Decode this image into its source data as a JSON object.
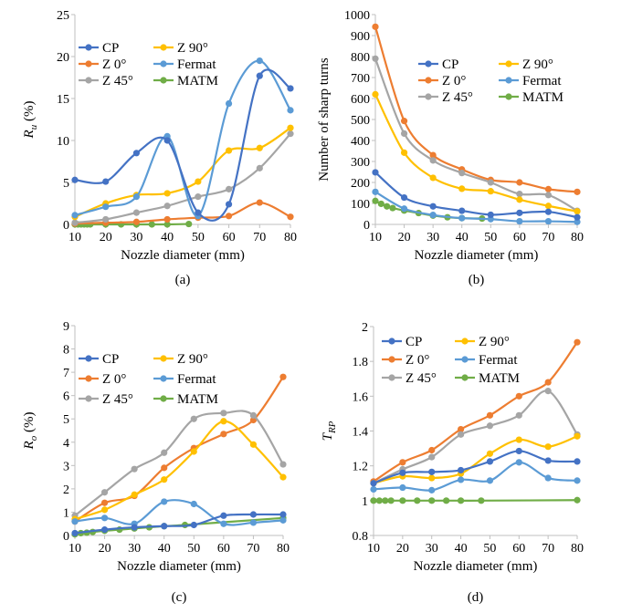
{
  "colors": {
    "CP": "#4472C4",
    "Z 0°": "#ED7D31",
    "Z 45°": "#A5A5A5",
    "Z 90°": "#FFC000",
    "Fermat": "#5B9BD5",
    "MATM": "#70AD47",
    "axis": "#bfbfbf"
  },
  "chart_data": [
    {
      "type": "line",
      "panel_label": "(a)",
      "xlabel": "Nozzle diameter (mm)",
      "ylabel_main": "R",
      "ylabel_sub": "u",
      "ylabel_tail": " (%)",
      "xlim": [
        10,
        80
      ],
      "ylim": [
        0,
        25
      ],
      "x_ticks": [
        "10",
        "20",
        "30",
        "40",
        "50",
        "60",
        "70",
        "80"
      ],
      "y_ticks": [
        "0",
        "5",
        "10",
        "15",
        "20",
        "25"
      ],
      "legend": [
        "CP",
        "Z 90°",
        "Z 0°",
        "Fermat",
        "Z 45°",
        "MATM"
      ],
      "series": [
        {
          "name": "CP",
          "x": [
            10,
            20,
            30,
            40,
            50,
            60,
            70,
            80
          ],
          "values": [
            5.3,
            5.1,
            8.5,
            10.0,
            1.4,
            2.4,
            17.7,
            16.2
          ]
        },
        {
          "name": "Z 90°",
          "x": [
            10,
            20,
            30,
            40,
            50,
            60,
            70,
            80
          ],
          "values": [
            0.9,
            2.5,
            3.5,
            3.7,
            5.1,
            8.8,
            9.1,
            11.5
          ]
        },
        {
          "name": "Z 0°",
          "x": [
            10,
            20,
            30,
            40,
            50,
            60,
            70,
            80
          ],
          "values": [
            0.1,
            0.2,
            0.3,
            0.6,
            0.8,
            1.0,
            2.6,
            0.9
          ]
        },
        {
          "name": "Fermat",
          "x": [
            10,
            20,
            30,
            40,
            50,
            60,
            70,
            80
          ],
          "values": [
            1.1,
            2.1,
            3.3,
            10.5,
            1.0,
            14.4,
            19.5,
            13.6
          ]
        },
        {
          "name": "Z 45°",
          "x": [
            10,
            20,
            30,
            40,
            50,
            60,
            70,
            80
          ],
          "values": [
            0.2,
            0.6,
            1.4,
            2.2,
            3.3,
            4.2,
            6.7,
            10.8
          ]
        },
        {
          "name": "MATM",
          "x": [
            10,
            11,
            12,
            13,
            14,
            15,
            20,
            25,
            30,
            35,
            40,
            47
          ],
          "values": [
            0.0,
            0.0,
            0.0,
            0.0,
            0.0,
            0.0,
            0.0,
            0.0,
            0.0,
            0.0,
            0.0,
            0.05
          ]
        }
      ]
    },
    {
      "type": "line",
      "panel_label": "(b)",
      "xlabel": "Nozzle diameter (mm)",
      "ylabel": "Number of sharp turns",
      "xlim": [
        10,
        80
      ],
      "ylim": [
        0,
        1000
      ],
      "x_ticks": [
        "10",
        "20",
        "30",
        "40",
        "50",
        "60",
        "70",
        "80"
      ],
      "y_ticks": [
        "0",
        "100",
        "200",
        "300",
        "400",
        "500",
        "600",
        "700",
        "800",
        "900",
        "1000"
      ],
      "legend": [
        "CP",
        "Z 90°",
        "Z 0°",
        "Fermat",
        "Z 45°",
        "MATM"
      ],
      "series": [
        {
          "name": "CP",
          "x": [
            10,
            20,
            30,
            40,
            50,
            60,
            70,
            80
          ],
          "values": [
            248,
            128,
            86,
            65,
            46,
            55,
            60,
            34
          ]
        },
        {
          "name": "Z 90°",
          "x": [
            10,
            20,
            30,
            40,
            50,
            60,
            70,
            80
          ],
          "values": [
            620,
            342,
            222,
            170,
            158,
            118,
            88,
            62
          ]
        },
        {
          "name": "Z 0°",
          "x": [
            10,
            20,
            30,
            40,
            50,
            60,
            70,
            80
          ],
          "values": [
            942,
            493,
            330,
            262,
            212,
            200,
            168,
            155
          ]
        },
        {
          "name": "Fermat",
          "x": [
            10,
            20,
            30,
            40,
            50,
            60,
            70,
            80
          ],
          "values": [
            155,
            75,
            45,
            30,
            25,
            15,
            15,
            12
          ]
        },
        {
          "name": "Z 45°",
          "x": [
            10,
            20,
            30,
            40,
            50,
            60,
            70,
            80
          ],
          "values": [
            790,
            433,
            305,
            245,
            200,
            145,
            140,
            65
          ]
        },
        {
          "name": "MATM",
          "x": [
            10,
            12,
            14,
            16,
            20,
            25,
            30,
            35,
            40,
            47
          ],
          "values": [
            112,
            98,
            86,
            78,
            66,
            54,
            42,
            34,
            30,
            28
          ]
        }
      ]
    },
    {
      "type": "line",
      "panel_label": "(c)",
      "xlabel": "Nozzle diameter (mm)",
      "ylabel_main": "R",
      "ylabel_sub": "o",
      "ylabel_tail": " (%)",
      "xlim": [
        10,
        80
      ],
      "ylim": [
        0,
        9
      ],
      "x_ticks": [
        "10",
        "20",
        "30",
        "40",
        "50",
        "60",
        "70",
        "80"
      ],
      "y_ticks": [
        "0",
        "1",
        "2",
        "3",
        "4",
        "5",
        "6",
        "7",
        "8",
        "9"
      ],
      "legend": [
        "CP",
        "Z 90°",
        "Z 0°",
        "Fermat",
        "Z 45°",
        "MATM"
      ],
      "series": [
        {
          "name": "CP",
          "x": [
            10,
            20,
            30,
            40,
            50,
            60,
            70,
            80
          ],
          "values": [
            0.1,
            0.25,
            0.35,
            0.4,
            0.45,
            0.85,
            0.9,
            0.9
          ]
        },
        {
          "name": "Z 90°",
          "x": [
            10,
            20,
            30,
            40,
            50,
            60,
            70,
            80
          ],
          "values": [
            0.7,
            1.1,
            1.75,
            2.4,
            3.6,
            4.9,
            3.9,
            2.5
          ]
        },
        {
          "name": "Z 0°",
          "x": [
            10,
            20,
            30,
            40,
            50,
            60,
            70,
            80
          ],
          "values": [
            0.6,
            1.4,
            1.7,
            2.9,
            3.75,
            4.35,
            4.95,
            6.8
          ]
        },
        {
          "name": "Fermat",
          "x": [
            10,
            20,
            30,
            40,
            50,
            60,
            70,
            80
          ],
          "values": [
            0.6,
            0.75,
            0.5,
            1.45,
            1.35,
            0.5,
            0.55,
            0.65
          ]
        },
        {
          "name": "Z 45°",
          "x": [
            10,
            20,
            30,
            40,
            50,
            60,
            70,
            80
          ],
          "values": [
            0.85,
            1.85,
            2.85,
            3.55,
            5.0,
            5.25,
            5.15,
            3.05
          ]
        },
        {
          "name": "MATM",
          "x": [
            10,
            12,
            14,
            16,
            20,
            25,
            30,
            35,
            40,
            47,
            80
          ],
          "values": [
            0.05,
            0.1,
            0.12,
            0.15,
            0.2,
            0.25,
            0.3,
            0.35,
            0.4,
            0.45,
            0.75
          ]
        }
      ]
    },
    {
      "type": "line",
      "panel_label": "(d)",
      "xlabel": "Nozzle diameter (mm)",
      "ylabel_main": "T",
      "ylabel_sub": "RP",
      "ylabel_tail": "",
      "xlim": [
        10,
        80
      ],
      "ylim": [
        0.8,
        2.0
      ],
      "x_ticks": [
        "10",
        "20",
        "30",
        "40",
        "50",
        "60",
        "70",
        "80"
      ],
      "y_ticks": [
        "0.8",
        "1",
        "1.2",
        "1.4",
        "1.6",
        "1.8",
        "2"
      ],
      "legend": [
        "CP",
        "Z 90°",
        "Z 0°",
        "Fermat",
        "Z 45°",
        "MATM"
      ],
      "series": [
        {
          "name": "CP",
          "x": [
            10,
            20,
            30,
            40,
            50,
            60,
            70,
            80
          ],
          "values": [
            1.1,
            1.16,
            1.165,
            1.175,
            1.225,
            1.285,
            1.23,
            1.225
          ]
        },
        {
          "name": "Z 90°",
          "x": [
            10,
            20,
            30,
            40,
            50,
            60,
            70,
            80
          ],
          "values": [
            1.1,
            1.14,
            1.13,
            1.155,
            1.27,
            1.35,
            1.31,
            1.37
          ]
        },
        {
          "name": "Z 0°",
          "x": [
            10,
            20,
            30,
            40,
            50,
            60,
            70,
            80
          ],
          "values": [
            1.11,
            1.22,
            1.29,
            1.41,
            1.49,
            1.6,
            1.68,
            1.91
          ]
        },
        {
          "name": "Fermat",
          "x": [
            10,
            20,
            30,
            40,
            50,
            60,
            70,
            80
          ],
          "values": [
            1.065,
            1.075,
            1.06,
            1.12,
            1.115,
            1.22,
            1.13,
            1.115
          ]
        },
        {
          "name": "Z 45°",
          "x": [
            10,
            20,
            30,
            40,
            50,
            60,
            70,
            80
          ],
          "values": [
            1.1,
            1.18,
            1.25,
            1.38,
            1.43,
            1.49,
            1.63,
            1.38
          ]
        },
        {
          "name": "MATM",
          "x": [
            10,
            12,
            14,
            16,
            20,
            25,
            30,
            35,
            40,
            47,
            80
          ],
          "values": [
            1.0,
            1.0,
            1.0,
            1.0,
            1.0,
            1.0,
            1.0,
            1.0,
            1.0,
            1.0,
            1.003
          ]
        }
      ]
    }
  ]
}
